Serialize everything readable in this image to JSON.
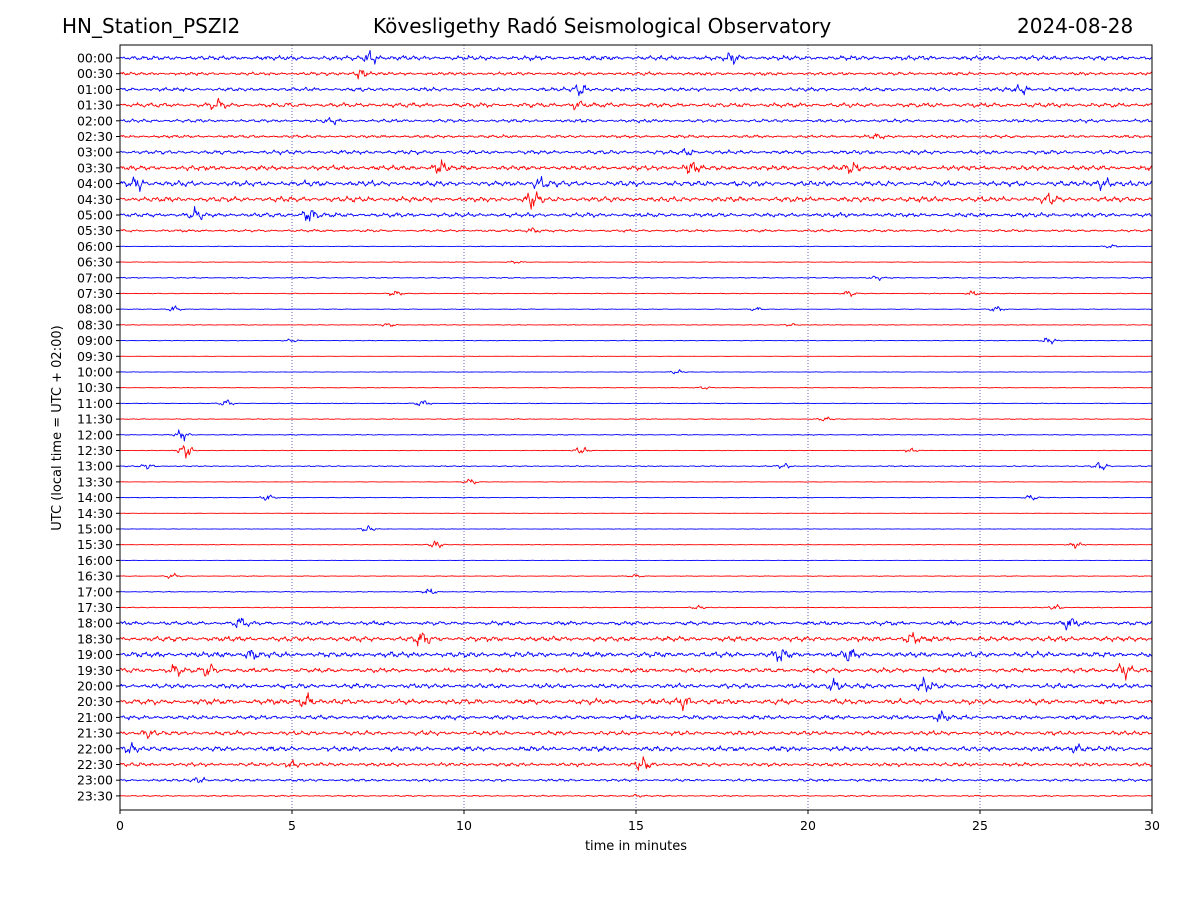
{
  "header": {
    "station": "HN_Station_PSZI2",
    "observatory": "Kövesligethy Radó Seismological Observatory",
    "date": "2024-08-28"
  },
  "chart_data": {
    "type": "line",
    "title": "Kövesligethy Radó Seismological Observatory",
    "xlabel": "time in minutes",
    "ylabel": "UTC (local time = UTC + 02:00)",
    "xlim": [
      0,
      30
    ],
    "xticks": [
      0,
      5,
      10,
      15,
      20,
      25,
      30
    ],
    "vertical_gridlines_at": [
      5,
      10,
      15,
      20,
      25
    ],
    "grid": "vertical dotted lines at 5-minute intervals",
    "row_labels": [
      "00:00",
      "00:30",
      "01:00",
      "01:30",
      "02:00",
      "02:30",
      "03:00",
      "03:30",
      "04:00",
      "04:30",
      "05:00",
      "05:30",
      "06:00",
      "06:30",
      "07:00",
      "07:30",
      "08:00",
      "08:30",
      "09:00",
      "09:30",
      "10:00",
      "10:30",
      "11:00",
      "11:30",
      "12:00",
      "12:30",
      "13:00",
      "13:30",
      "14:00",
      "14:30",
      "15:00",
      "15:30",
      "16:00",
      "16:30",
      "17:00",
      "17:30",
      "18:00",
      "18:30",
      "19:00",
      "19:30",
      "20:00",
      "20:30",
      "21:00",
      "21:30",
      "22:00",
      "22:30",
      "23:00",
      "23:30"
    ],
    "trace_colors": [
      "#0000ff",
      "#ff0000"
    ],
    "row_activity": [
      0.85,
      0.6,
      0.7,
      0.85,
      0.6,
      0.55,
      0.75,
      0.9,
      1.0,
      1.0,
      0.8,
      0.45,
      0.12,
      0.1,
      0.2,
      0.15,
      0.12,
      0.12,
      0.12,
      0.06,
      0.08,
      0.1,
      0.12,
      0.15,
      0.15,
      0.1,
      0.2,
      0.08,
      0.12,
      0.06,
      0.08,
      0.1,
      0.06,
      0.12,
      0.15,
      0.15,
      0.75,
      0.95,
      1.0,
      0.85,
      0.9,
      1.0,
      0.8,
      0.8,
      0.9,
      0.7,
      0.5,
      0.25
    ],
    "events": [
      [
        [
          7.3,
          1.2
        ],
        [
          17.8,
          0.8
        ]
      ],
      [
        [
          7.0,
          1.0
        ]
      ],
      [
        [
          13.4,
          1.0
        ],
        [
          26.2,
          0.9
        ]
      ],
      [
        [
          2.8,
          0.8
        ],
        [
          13.3,
          0.8
        ]
      ],
      [
        [
          6.2,
          0.5
        ]
      ],
      [
        [
          22.0,
          0.4
        ]
      ],
      [
        [
          16.5,
          0.6
        ]
      ],
      [
        [
          9.3,
          1.2
        ],
        [
          16.6,
          1.2
        ],
        [
          21.3,
          1.0
        ]
      ],
      [
        [
          0.5,
          1.1
        ],
        [
          12.2,
          1.4
        ],
        [
          28.6,
          1.2
        ]
      ],
      [
        [
          12.0,
          1.4
        ],
        [
          27.0,
          0.9
        ]
      ],
      [
        [
          2.2,
          1.0
        ],
        [
          5.5,
          1.3
        ]
      ],
      [
        [
          12.0,
          0.6
        ]
      ],
      [
        [
          28.8,
          0.3
        ]
      ],
      [
        [
          11.5,
          0.3
        ]
      ],
      [
        [
          22.0,
          0.4
        ]
      ],
      [
        [
          8.0,
          0.6
        ],
        [
          21.2,
          0.6
        ],
        [
          24.8,
          0.5
        ]
      ],
      [
        [
          1.6,
          0.6
        ],
        [
          18.5,
          0.4
        ],
        [
          25.5,
          0.6
        ]
      ],
      [
        [
          7.8,
          0.4
        ],
        [
          19.5,
          0.3
        ]
      ],
      [
        [
          5.0,
          0.3
        ],
        [
          27.0,
          0.7
        ]
      ],
      [],
      [
        [
          16.2,
          0.4
        ]
      ],
      [
        [
          17.0,
          0.3
        ]
      ],
      [
        [
          3.1,
          0.7
        ],
        [
          8.8,
          0.7
        ]
      ],
      [
        [
          20.5,
          0.4
        ]
      ],
      [
        [
          1.8,
          1.0
        ]
      ],
      [
        [
          1.9,
          1.6
        ],
        [
          13.4,
          0.8
        ],
        [
          23.0,
          0.4
        ]
      ],
      [
        [
          0.8,
          0.5
        ],
        [
          19.3,
          0.5
        ],
        [
          28.5,
          0.8
        ]
      ],
      [
        [
          10.2,
          0.6
        ]
      ],
      [
        [
          4.3,
          0.7
        ],
        [
          26.5,
          0.5
        ]
      ],
      [],
      [
        [
          7.2,
          0.6
        ]
      ],
      [
        [
          9.2,
          0.7
        ],
        [
          27.8,
          0.7
        ]
      ],
      [],
      [
        [
          1.5,
          0.5
        ],
        [
          15.0,
          0.3
        ]
      ],
      [
        [
          9.0,
          0.6
        ]
      ],
      [
        [
          16.8,
          0.4
        ],
        [
          27.2,
          0.5
        ]
      ],
      [
        [
          3.5,
          0.9
        ],
        [
          27.6,
          1.1
        ]
      ],
      [
        [
          8.8,
          1.2
        ],
        [
          23.0,
          1.0
        ]
      ],
      [
        [
          3.8,
          1.0
        ],
        [
          19.2,
          1.2
        ],
        [
          21.2,
          1.1
        ]
      ],
      [
        [
          1.6,
          1.0
        ],
        [
          2.6,
          1.3
        ],
        [
          29.2,
          1.4
        ]
      ],
      [
        [
          20.8,
          1.2
        ],
        [
          23.4,
          1.3
        ]
      ],
      [
        [
          5.4,
          1.4
        ],
        [
          16.4,
          1.2
        ]
      ],
      [
        [
          23.9,
          0.9
        ]
      ],
      [
        [
          0.8,
          0.8
        ]
      ],
      [
        [
          0.3,
          0.9
        ],
        [
          27.8,
          0.8
        ]
      ],
      [
        [
          5.0,
          0.8
        ],
        [
          15.2,
          1.3
        ]
      ],
      [
        [
          2.3,
          0.6
        ]
      ],
      [
        [
          15.0,
          0.3
        ]
      ]
    ]
  }
}
